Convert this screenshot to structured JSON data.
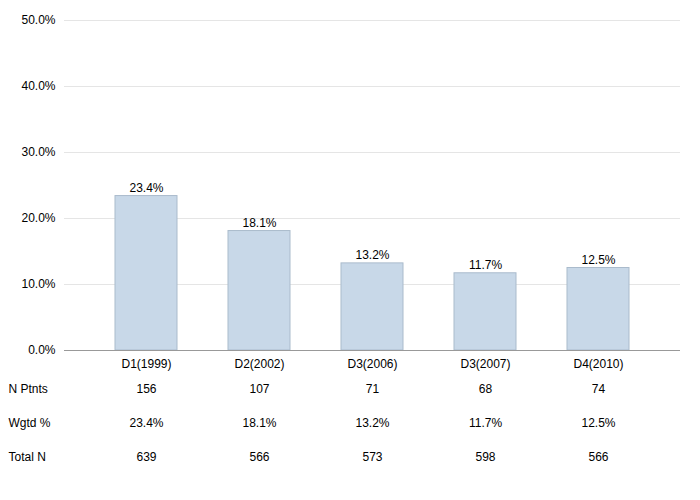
{
  "chart_data": {
    "type": "bar",
    "categories": [
      "D1(1999)",
      "D2(2002)",
      "D3(2006)",
      "D3(2007)",
      "D4(2010)"
    ],
    "values": [
      23.4,
      18.1,
      13.2,
      11.7,
      12.5
    ],
    "value_labels": [
      "23.4%",
      "18.1%",
      "13.2%",
      "11.7%",
      "12.5%"
    ],
    "data_labels": true,
    "color": "#c8d8e8",
    "ylim": [
      0,
      50
    ],
    "yticks": [
      {
        "value": 0,
        "label": "0.0%"
      },
      {
        "value": 10,
        "label": "10.0%"
      },
      {
        "value": 20,
        "label": "20.0%"
      },
      {
        "value": 30,
        "label": "30.0%"
      },
      {
        "value": 40,
        "label": "40.0%"
      },
      {
        "value": 50,
        "label": "50.0%"
      }
    ],
    "grid": true,
    "table": {
      "row_labels": [
        "N Ptnts",
        "Wgtd %",
        "Total N"
      ],
      "rows": [
        [
          "156",
          "107",
          "71",
          "68",
          "74"
        ],
        [
          "23.4%",
          "18.1%",
          "13.2%",
          "11.7%",
          "12.5%"
        ],
        [
          "639",
          "566",
          "573",
          "598",
          "566"
        ]
      ]
    }
  }
}
